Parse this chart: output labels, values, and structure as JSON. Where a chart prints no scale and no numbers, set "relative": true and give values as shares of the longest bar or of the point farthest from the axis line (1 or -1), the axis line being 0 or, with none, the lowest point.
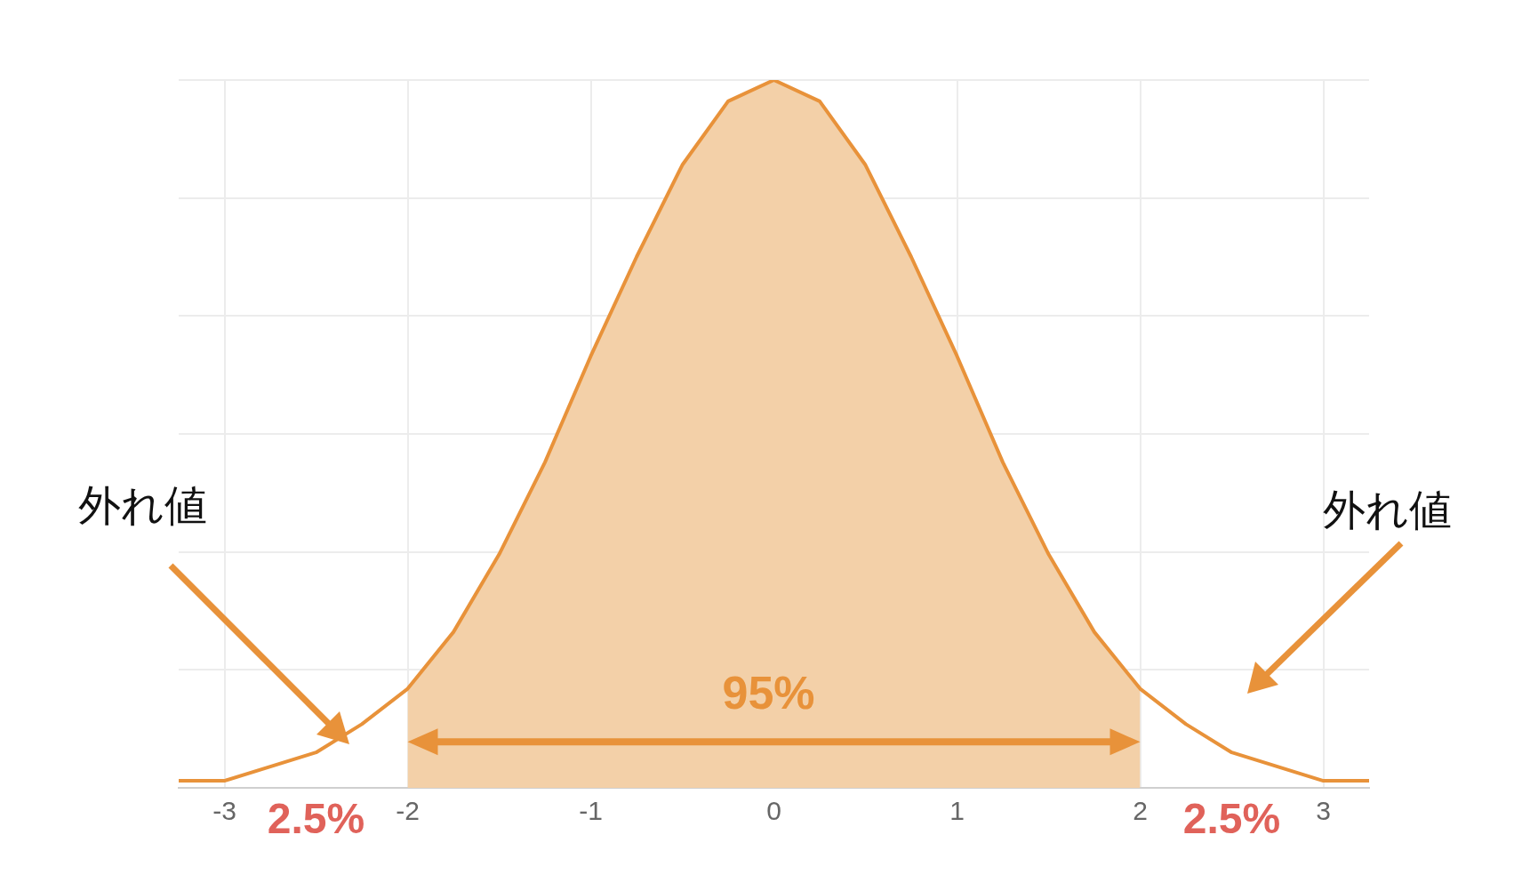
{
  "chart_data": {
    "type": "line",
    "relative": true,
    "xlim": [
      -3.25,
      3.25
    ],
    "xticks": [
      -3,
      -2,
      -1,
      0,
      1,
      2,
      3
    ],
    "grid": true,
    "tick_labels": "x",
    "legend": false,
    "marker": "none",
    "series": [
      {
        "type": "area",
        "color": "#f3d0a8",
        "x": [
          -2,
          -1.75,
          -1.5,
          -1.25,
          -1,
          -0.75,
          -0.5,
          -0.25,
          0,
          0.25,
          0.5,
          0.75,
          1,
          1.25,
          1.5,
          1.75,
          2
        ],
        "values": [
          0.14,
          0.22,
          0.33,
          0.46,
          0.61,
          0.75,
          0.88,
          0.97,
          1,
          0.97,
          0.88,
          0.75,
          0.61,
          0.46,
          0.33,
          0.22,
          0.14
        ]
      },
      {
        "color": "#e8923a",
        "x": [
          -3.25,
          -3,
          -2.75,
          -2.5,
          -2.25,
          -2,
          -1.75,
          -1.5,
          -1.25,
          -1,
          -0.75,
          -0.5,
          -0.25,
          0,
          0.25,
          0.5,
          0.75,
          1,
          1.25,
          1.5,
          1.75,
          2,
          2.25,
          2.5,
          2.75,
          3,
          3.25
        ],
        "values": [
          0.01,
          0.01,
          0.03,
          0.05,
          0.09,
          0.14,
          0.22,
          0.33,
          0.46,
          0.61,
          0.75,
          0.88,
          0.97,
          1,
          0.97,
          0.88,
          0.75,
          0.61,
          0.46,
          0.33,
          0.22,
          0.14,
          0.09,
          0.05,
          0.03,
          0.01,
          0.01
        ]
      }
    ],
    "annotations": [
      "95%",
      "外れ値",
      "外れ値",
      "2.5%",
      "2.5%"
    ]
  }
}
